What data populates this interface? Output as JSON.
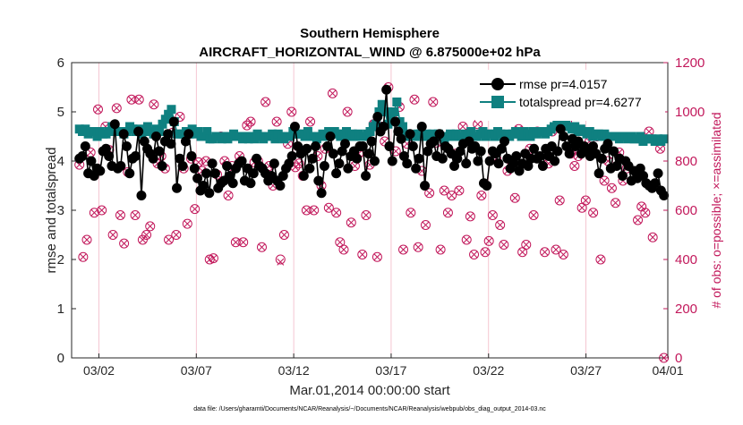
{
  "chart_data": {
    "type": "line",
    "title": "Southern Hemisphere",
    "subtitle": "AIRCRAFT_HORIZONTAL_WIND @ 6.875000e+02 hPa",
    "xlabel": "Mar.01,2014 00:00:00 start",
    "ylabel_left": "rmse and totalspread",
    "ylabel_right": "# of obs: o=possible; ×=assimilated",
    "footnote": "data file: /Users/gharamti/Documents/NCAR/Reanalysis/~/Documents/NCAR/Reanalysis/webpub/obs_diag_output_2014-03.nc",
    "x_range": [
      0.6,
      31.2
    ],
    "ylim_left": [
      0,
      6
    ],
    "ylim_right": [
      0,
      1200
    ],
    "x_ticks": [
      {
        "day": 2,
        "label": "03/02"
      },
      {
        "day": 7,
        "label": "03/07"
      },
      {
        "day": 12,
        "label": "03/12"
      },
      {
        "day": 17,
        "label": "03/17"
      },
      {
        "day": 22,
        "label": "03/22"
      },
      {
        "day": 27,
        "label": "03/27"
      },
      {
        "day": 32,
        "label": "04/01"
      }
    ],
    "y_ticks_left": [
      "0",
      "1",
      "2",
      "3",
      "4",
      "5",
      "6"
    ],
    "y_ticks_right": [
      "0",
      "200",
      "400",
      "600",
      "800",
      "1000",
      "1200"
    ],
    "colors": {
      "rmse": "#000000",
      "spread": "#0f8080",
      "obs": "#c2185b",
      "grid_day": "#f2b8c6"
    },
    "grid_days": [
      2,
      7,
      12,
      17,
      22,
      27,
      32
    ],
    "series": [
      {
        "name": "rmse",
        "legend": "rmse pr=4.0157",
        "values": [
          4.05,
          4.1,
          4.3,
          3.75,
          4.0,
          3.7,
          3.85,
          3.8,
          4.2,
          4.25,
          4.1,
          3.9,
          4.75,
          3.85,
          3.9,
          4.55,
          4.3,
          3.75,
          4.05,
          4.1,
          4.6,
          3.3,
          4.4,
          4.25,
          4.15,
          4.05,
          4.5,
          4.2,
          3.9,
          4.4,
          4.55,
          4.35,
          4.8,
          3.45,
          4.05,
          3.9,
          4.4,
          4.55,
          4.1,
          3.85,
          3.65,
          3.4,
          3.5,
          3.75,
          3.35,
          3.95,
          3.75,
          3.45,
          3.55,
          3.6,
          3.9,
          3.7,
          3.55,
          3.85,
          3.95,
          4.0,
          3.6,
          3.85,
          3.55,
          3.75,
          4.05,
          3.9,
          3.85,
          3.75,
          3.6,
          3.7,
          3.95,
          3.6,
          3.5,
          3.7,
          3.85,
          3.95,
          4.1,
          4.7,
          4.3,
          4.15,
          3.7,
          4.25,
          3.85,
          4.05,
          4.3,
          3.6,
          3.35,
          3.9,
          4.3,
          4.5,
          4.15,
          3.75,
          3.95,
          4.2,
          4.35,
          3.85,
          4.1,
          4.2,
          4.05,
          4.3,
          4.3,
          3.7,
          4.15,
          4.4,
          4.0,
          4.9,
          4.6,
          4.7,
          5.45,
          4.3,
          4.0,
          4.8,
          4.6,
          4.45,
          4.1,
          3.95,
          4.55,
          4.3,
          3.85,
          4.05,
          4.7,
          3.5,
          4.2,
          4.35,
          4.4,
          4.1,
          4.55,
          4.05,
          4.3,
          4.25,
          4.15,
          3.9,
          4.05,
          4.2,
          4.35,
          3.95,
          4.4,
          4.25,
          4.3,
          4.0,
          4.2,
          3.55,
          3.5,
          4.0,
          4.2,
          4.15,
          3.95,
          4.25,
          4.4,
          4.05,
          3.85,
          3.95,
          4.1,
          3.8,
          3.95,
          4.15,
          3.9,
          4.05,
          4.25,
          4.05,
          4.1,
          3.9,
          4.25,
          4.1,
          4.3,
          4.0,
          4.2,
          4.65,
          4.5,
          4.3,
          4.15,
          4.45,
          4.3,
          4.4,
          4.15,
          4.3,
          4.2,
          4.1,
          4.3,
          4.15,
          3.75,
          4.05,
          4.25,
          4.35,
          3.85,
          4.2,
          3.9,
          4.05,
          3.7,
          4.0,
          3.9,
          3.6,
          3.8,
          3.65,
          3.85,
          3.7,
          3.55,
          3.5,
          3.45,
          3.55,
          3.75,
          3.4,
          3.3
        ]
      },
      {
        "name": "totalspread",
        "legend": "totalspread pr=4.6277",
        "values": [
          4.65,
          4.6,
          4.65,
          4.55,
          4.6,
          4.6,
          4.5,
          4.6,
          4.55,
          4.55,
          4.6,
          4.7,
          4.65,
          4.6,
          4.6,
          4.55,
          4.6,
          4.7,
          4.65,
          4.6,
          4.65,
          4.55,
          4.6,
          4.7,
          4.6,
          4.55,
          4.65,
          4.6,
          4.75,
          4.85,
          4.95,
          5.05,
          4.8,
          4.55,
          4.55,
          4.55,
          4.6,
          4.55,
          4.65,
          4.55,
          4.6,
          4.5,
          4.5,
          4.6,
          4.45,
          4.45,
          4.5,
          4.5,
          4.45,
          4.5,
          4.45,
          4.5,
          4.55,
          4.5,
          4.5,
          4.45,
          4.5,
          4.45,
          4.5,
          4.45,
          4.55,
          4.5,
          4.45,
          4.5,
          4.5,
          4.55,
          4.45,
          4.55,
          4.5,
          4.45,
          4.5,
          4.5,
          4.6,
          4.55,
          4.55,
          4.55,
          4.5,
          4.6,
          4.5,
          4.5,
          4.45,
          4.5,
          4.55,
          4.5,
          4.6,
          4.55,
          4.6,
          4.55,
          4.5,
          4.55,
          4.6,
          4.5,
          4.55,
          4.5,
          4.55,
          4.5,
          4.5,
          4.55,
          4.6,
          4.7,
          4.75,
          5.0,
          5.15,
          5.0,
          4.75,
          4.9,
          5.0,
          5.2,
          4.8,
          4.7,
          4.55,
          4.5,
          4.5,
          4.5,
          4.55,
          4.55,
          4.5,
          4.55,
          4.5,
          4.55,
          4.5,
          4.55,
          4.5,
          4.45,
          4.5,
          4.55,
          4.5,
          4.55,
          4.5,
          4.5,
          4.55,
          4.5,
          4.6,
          4.5,
          4.5,
          4.55,
          4.6,
          4.5,
          4.55,
          4.55,
          4.5,
          4.6,
          4.55,
          4.5,
          4.55,
          4.5,
          4.55,
          4.6,
          4.55,
          4.5,
          4.6,
          4.55,
          4.5,
          4.6,
          4.55,
          4.6,
          4.6,
          4.55,
          4.6,
          4.65,
          4.7,
          4.75,
          4.8,
          4.7,
          4.75,
          4.7,
          4.65,
          4.7,
          4.6,
          4.65,
          4.6,
          4.55,
          4.6,
          4.5,
          4.55,
          4.55,
          4.5,
          4.55,
          4.5,
          4.5,
          4.5,
          4.5,
          4.45,
          4.5,
          4.5,
          4.45,
          4.5,
          4.45,
          4.45,
          4.5,
          4.4,
          4.45,
          4.45,
          4.45,
          4.4,
          4.45,
          4.4,
          4.45
        ]
      },
      {
        "name": "obs_possible",
        "axis": "right",
        "marker": "circle",
        "values": [
          785,
          410,
          480,
          835,
          590,
          1010,
          600,
          940,
          845,
          500,
          1015,
          580,
          465,
          755,
          1050,
          580,
          1050,
          480,
          500,
          535,
          1030,
          790,
          820,
          770,
          480,
          915,
          500,
          980,
          770,
          545,
          810,
          605,
          795,
          760,
          800,
          400,
          405,
          745,
          900,
          800,
          660,
          780,
          470,
          820,
          470,
          945,
          960,
          795,
          800,
          450,
          1040,
          780,
          700,
          960,
          400,
          500,
          870,
          1000,
          775,
          790,
          740,
          600,
          960,
          600,
          820,
          700,
          850,
          610,
          1075,
          590,
          470,
          440,
          1000,
          550,
          780,
          830,
          420,
          580,
          785,
          950,
          410,
          940,
          880,
          1100,
          980,
          840,
          1020,
          440,
          870,
          590,
          1050,
          450,
          760,
          540,
          670,
          1040,
          875,
          440,
          680,
          590,
          660,
          830,
          680,
          940,
          480,
          575,
          420,
          950,
          660,
          430,
          475,
          580,
          810,
          540,
          460,
          760,
          800,
          650,
          930,
          430,
          460,
          850,
          580,
          920,
          1030,
          430,
          790,
          920,
          440,
          640,
          420,
          960,
          830,
          780,
          820,
          610,
          640,
          880,
          590,
          900,
          400,
          720,
          800,
          690,
          630,
          835,
          720,
          770,
          1000,
          1010,
          560,
          615,
          590,
          920,
          490,
          1030,
          850,
          0
        ]
      },
      {
        "name": "obs_assimilated",
        "axis": "right",
        "marker": "x",
        "values": [
          785,
          410,
          480,
          835,
          590,
          1010,
          600,
          940,
          845,
          500,
          1015,
          580,
          465,
          755,
          1050,
          580,
          1050,
          480,
          500,
          535,
          1030,
          790,
          820,
          770,
          480,
          915,
          500,
          980,
          770,
          545,
          810,
          605,
          795,
          760,
          800,
          400,
          405,
          745,
          900,
          800,
          660,
          780,
          470,
          820,
          470,
          945,
          960,
          795,
          800,
          450,
          1040,
          780,
          700,
          960,
          390,
          500,
          870,
          1000,
          775,
          790,
          740,
          600,
          960,
          600,
          820,
          700,
          850,
          610,
          1075,
          590,
          470,
          440,
          1000,
          550,
          780,
          830,
          420,
          580,
          785,
          950,
          410,
          940,
          880,
          1100,
          980,
          840,
          1020,
          440,
          870,
          590,
          1050,
          450,
          760,
          540,
          670,
          1040,
          875,
          440,
          680,
          590,
          660,
          830,
          680,
          940,
          480,
          575,
          420,
          950,
          660,
          430,
          475,
          580,
          810,
          540,
          460,
          760,
          800,
          650,
          930,
          430,
          460,
          850,
          580,
          920,
          1030,
          430,
          790,
          920,
          440,
          640,
          420,
          960,
          830,
          780,
          820,
          610,
          640,
          880,
          590,
          900,
          400,
          720,
          800,
          690,
          630,
          835,
          720,
          770,
          1000,
          1010,
          560,
          615,
          590,
          920,
          490,
          1030,
          850,
          0
        ]
      }
    ]
  }
}
